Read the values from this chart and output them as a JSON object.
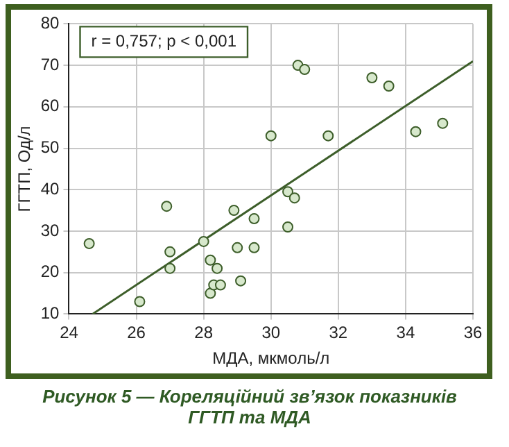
{
  "chart_data": {
    "type": "scatter",
    "title": "Рисунок 5 — Кореляційний зв’язок показників ГГТП та МДА",
    "xlabel": "МДА, мкмоль/л",
    "ylabel": "ГГТП, Од/л",
    "annotations": [
      "r = 0,757; p < 0,001"
    ],
    "xlim": [
      24,
      36
    ],
    "xticks": [
      24,
      26,
      28,
      30,
      32,
      34,
      36
    ],
    "ylim": [
      10,
      80
    ],
    "yticks": [
      10,
      20,
      30,
      40,
      50,
      60,
      70,
      80
    ],
    "grid": true,
    "series": [
      {
        "type": "scatter",
        "marker": "circle",
        "color": "#d7e8cc",
        "x": [
          24.6,
          26.1,
          26.9,
          27,
          27,
          28,
          28.2,
          28.2,
          28.3,
          28.4,
          28.5,
          28.9,
          29,
          29.1,
          29.5,
          29.5,
          30,
          30.5,
          30.5,
          30.7,
          30.8,
          31,
          31.7,
          33,
          33.5,
          34.3,
          35.1
        ],
        "values": [
          27,
          13,
          36,
          25,
          21,
          27.5,
          23,
          15,
          17,
          21,
          17,
          35,
          26,
          18,
          33,
          26,
          53,
          31,
          39.5,
          38,
          70,
          69,
          53,
          67,
          65,
          54,
          56
        ]
      },
      {
        "type": "line",
        "marker": "none",
        "color": "#3d5e2a",
        "x": [
          24.7,
          36
        ],
        "values": [
          10,
          71
        ]
      }
    ]
  }
}
